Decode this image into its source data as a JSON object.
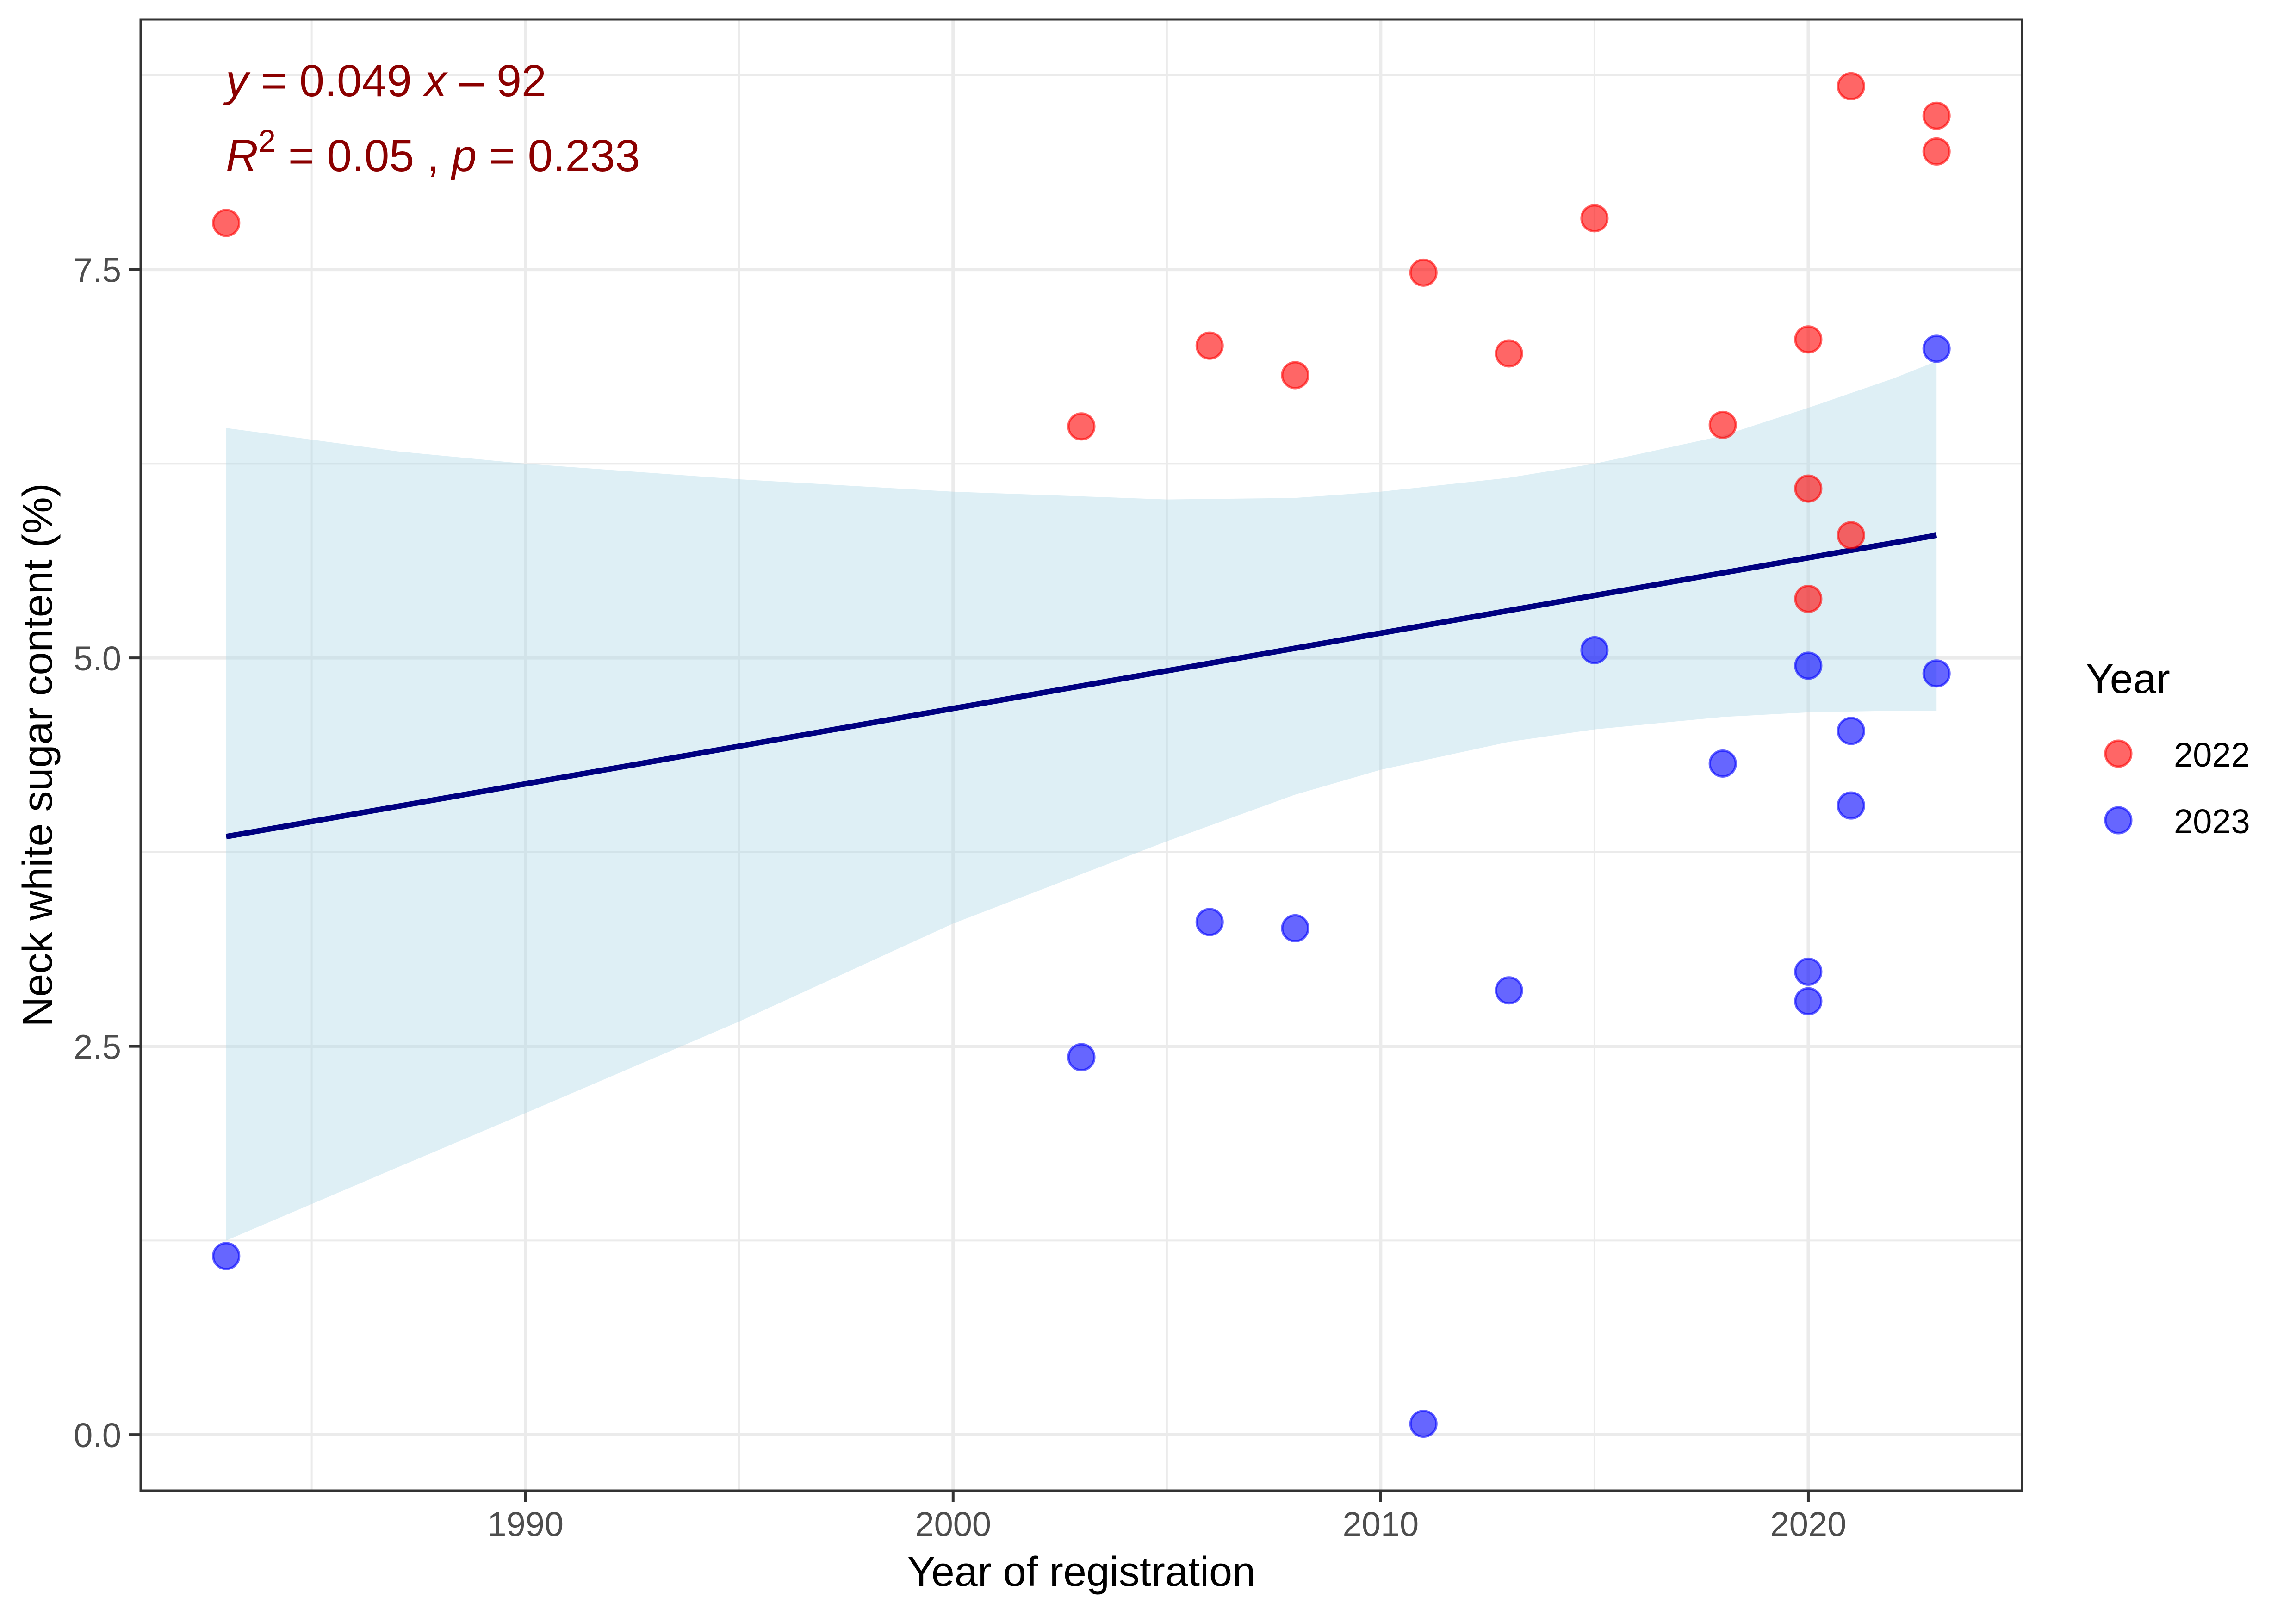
{
  "chart_data": {
    "type": "scatter",
    "title": "",
    "xlabel": "Year of registration",
    "ylabel": "Neck white sugar content (%)",
    "xlim": [
      1981.0,
      2025.0
    ],
    "ylim": [
      -0.36,
      9.11
    ],
    "x_ticks": [
      1990,
      2000,
      2010,
      2020
    ],
    "x_tick_labels": [
      "1990",
      "2000",
      "2010",
      "2020"
    ],
    "x_minor_ticks": [
      1985,
      1995,
      2005,
      2015,
      2025
    ],
    "y_ticks": [
      0.0,
      2.5,
      5.0,
      7.5
    ],
    "y_tick_labels": [
      "0.0",
      "2.5",
      "5.0",
      "7.5"
    ],
    "y_minor_ticks": [
      1.25,
      3.75,
      6.25,
      8.75
    ],
    "grid": true,
    "legend": {
      "title": "Year",
      "placement": "right",
      "entries": [
        {
          "label": "2022",
          "color": "#FF0000"
        },
        {
          "label": "2023",
          "color": "#0000FF"
        }
      ]
    },
    "series": [
      {
        "name": "2022",
        "color": "#FF0000",
        "points": [
          {
            "x": 1983,
            "y": 7.8
          },
          {
            "x": 2003,
            "y": 6.49
          },
          {
            "x": 2006,
            "y": 7.01
          },
          {
            "x": 2008,
            "y": 6.82
          },
          {
            "x": 2011,
            "y": 7.48
          },
          {
            "x": 2013,
            "y": 6.96
          },
          {
            "x": 2015,
            "y": 7.83
          },
          {
            "x": 2018,
            "y": 6.5
          },
          {
            "x": 2020,
            "y": 7.05
          },
          {
            "x": 2020,
            "y": 6.09
          },
          {
            "x": 2020,
            "y": 5.38
          },
          {
            "x": 2021,
            "y": 8.68
          },
          {
            "x": 2021,
            "y": 5.79
          },
          {
            "x": 2023,
            "y": 8.49
          },
          {
            "x": 2023,
            "y": 8.26
          }
        ]
      },
      {
        "name": "2023",
        "color": "#0000FF",
        "points": [
          {
            "x": 1983,
            "y": 1.15
          },
          {
            "x": 2003,
            "y": 2.43
          },
          {
            "x": 2006,
            "y": 3.3
          },
          {
            "x": 2008,
            "y": 3.26
          },
          {
            "x": 2011,
            "y": 0.07
          },
          {
            "x": 2013,
            "y": 2.86
          },
          {
            "x": 2015,
            "y": 5.05
          },
          {
            "x": 2018,
            "y": 4.32
          },
          {
            "x": 2020,
            "y": 4.95
          },
          {
            "x": 2020,
            "y": 2.98
          },
          {
            "x": 2020,
            "y": 2.79
          },
          {
            "x": 2021,
            "y": 4.53
          },
          {
            "x": 2021,
            "y": 4.05
          },
          {
            "x": 2023,
            "y": 6.99
          },
          {
            "x": 2023,
            "y": 4.9
          }
        ]
      }
    ],
    "regression": {
      "color": "#000080",
      "x_range": [
        1983,
        2023
      ],
      "y_at_range": [
        3.85,
        5.79
      ],
      "confidence_band": {
        "color": "#ADD8E6",
        "x": [
          1983,
          1987,
          1990,
          1995,
          2000,
          2005,
          2008,
          2010,
          2013,
          2015,
          2018,
          2020,
          2022,
          2023
        ],
        "upper": [
          6.48,
          6.33,
          6.25,
          6.15,
          6.07,
          6.02,
          6.03,
          6.07,
          6.16,
          6.25,
          6.43,
          6.61,
          6.8,
          6.91
        ],
        "lower": [
          1.25,
          1.72,
          2.07,
          2.66,
          3.29,
          3.82,
          4.12,
          4.28,
          4.46,
          4.54,
          4.62,
          4.65,
          4.66,
          4.66
        ]
      }
    },
    "annotations": {
      "equation": {
        "y_var": "y",
        "eq": " = 0.049 ",
        "x_var": "x",
        "rest": " – 92"
      },
      "stats": {
        "r": "R",
        "sup": "2",
        "r_rest": " = 0.05 , ",
        "p": "p",
        "p_rest": " = 0.233"
      },
      "color": "#8B0000"
    }
  }
}
